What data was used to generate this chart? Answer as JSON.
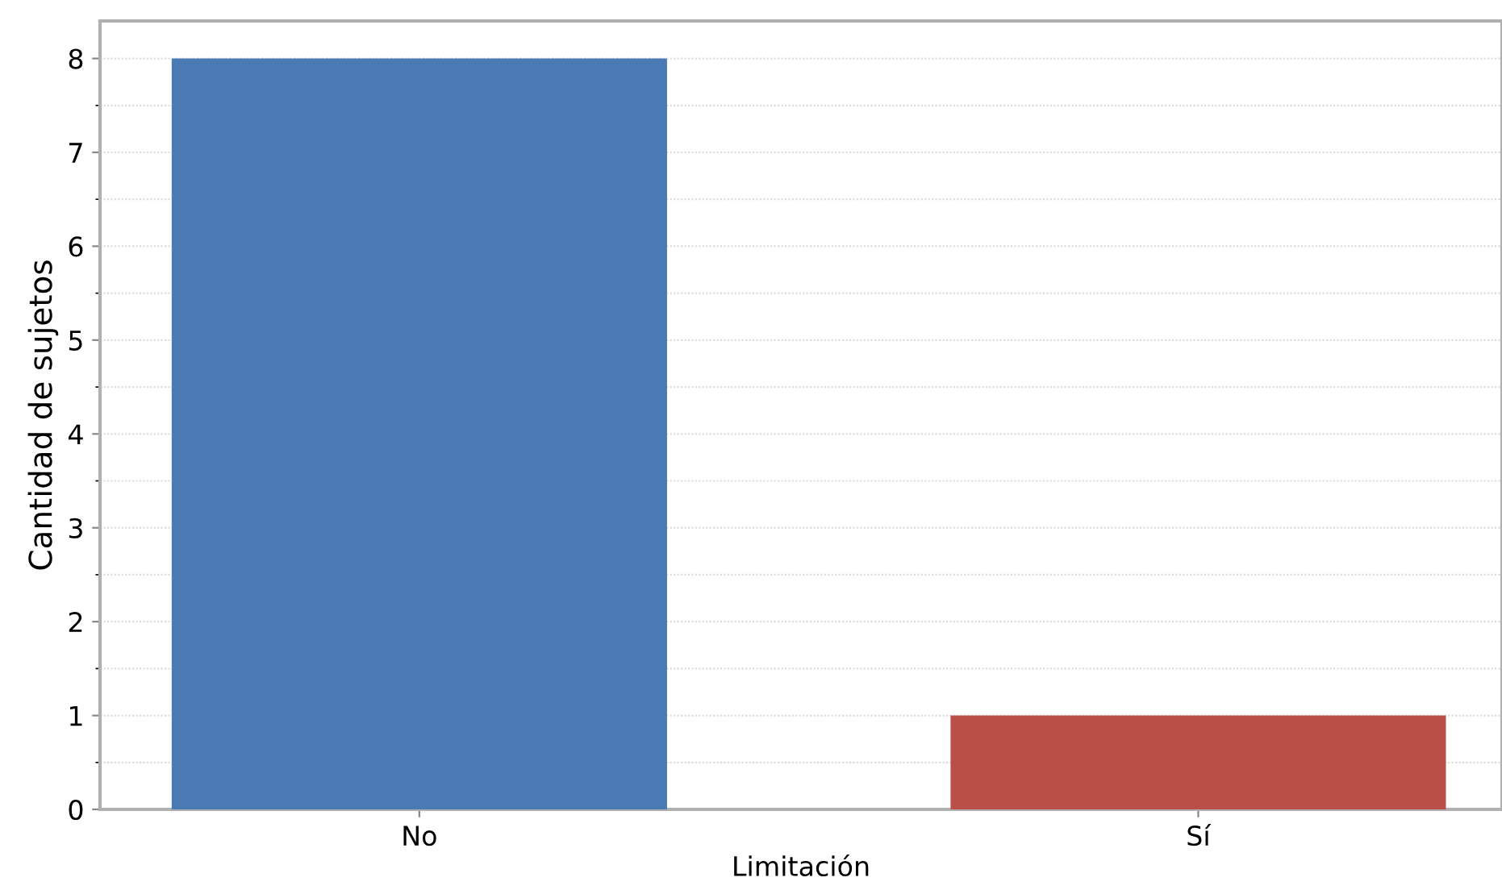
{
  "chart_data": {
    "type": "bar",
    "xlabel": "Limitación",
    "ylabel": "Cantidad de sujetos",
    "categories": [
      "No",
      "Sí"
    ],
    "values": [
      8,
      1
    ],
    "colors": [
      "#4a7ab4",
      "#b94f46"
    ],
    "ylim": [
      0,
      8.4
    ],
    "yticks": [
      0,
      1,
      2,
      3,
      4,
      5,
      6,
      7,
      8
    ],
    "grid": "y",
    "legend": false
  }
}
